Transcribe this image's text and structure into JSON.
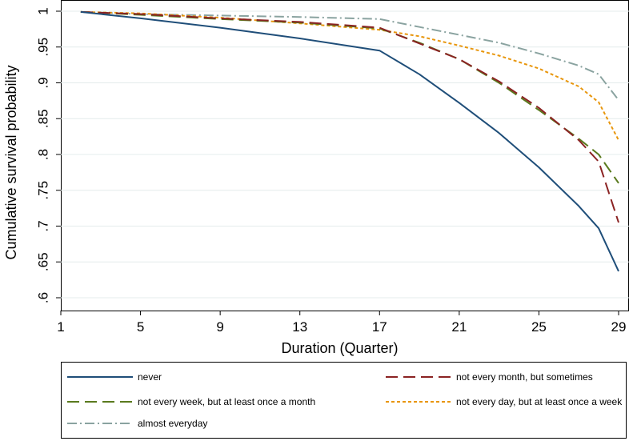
{
  "chart_data": {
    "type": "line",
    "title": "",
    "xlabel": "Duration (Quarter)",
    "ylabel": "Cumulative survival probability",
    "xlim": [
      1,
      29
    ],
    "ylim": [
      0.6,
      1
    ],
    "x_ticks": [
      1,
      5,
      9,
      13,
      17,
      21,
      25,
      29
    ],
    "y_ticks": [
      0.6,
      0.65,
      0.7,
      0.75,
      0.8,
      0.85,
      0.9,
      0.95,
      1
    ],
    "y_tick_labels": [
      ".6",
      ".65",
      ".7",
      ".75",
      ".8",
      ".85",
      ".9",
      ".95",
      "1"
    ],
    "grid": "horizontal",
    "legend_position": "bottom",
    "series": [
      {
        "name": "never",
        "color": "#1f4e79",
        "dash": "solid",
        "x": [
          2,
          5,
          9,
          13,
          17,
          19,
          21,
          23,
          25,
          27,
          28,
          29
        ],
        "y": [
          0.999,
          0.99,
          0.977,
          0.962,
          0.945,
          0.912,
          0.872,
          0.83,
          0.782,
          0.728,
          0.697,
          0.637
        ]
      },
      {
        "name": "not every month, but sometimes",
        "color": "#8b2323",
        "dash": "long-dash",
        "x": [
          2,
          5,
          9,
          13,
          17,
          19,
          21,
          23,
          25,
          27,
          28,
          29
        ],
        "y": [
          0.999,
          0.996,
          0.99,
          0.985,
          0.977,
          0.955,
          0.933,
          0.902,
          0.865,
          0.82,
          0.79,
          0.705
        ]
      },
      {
        "name": "not every week, but at least once a month",
        "color": "#5a7a1e",
        "dash": "long-dash",
        "x": [
          2,
          5,
          9,
          13,
          17,
          19,
          21,
          23,
          25,
          27,
          28,
          29
        ],
        "y": [
          0.999,
          0.995,
          0.989,
          0.984,
          0.976,
          0.956,
          0.933,
          0.9,
          0.862,
          0.822,
          0.8,
          0.76
        ]
      },
      {
        "name": "not every day, but at least once a week",
        "color": "#e8960c",
        "dash": "short-dash",
        "x": [
          2,
          5,
          9,
          13,
          17,
          19,
          21,
          23,
          25,
          27,
          28,
          29
        ],
        "y": [
          0.999,
          0.997,
          0.991,
          0.983,
          0.974,
          0.965,
          0.952,
          0.938,
          0.92,
          0.895,
          0.873,
          0.82
        ]
      },
      {
        "name": "almost everyday",
        "color": "#8aa3a0",
        "dash": "dash-dot",
        "x": [
          2,
          5,
          9,
          13,
          17,
          19,
          21,
          23,
          25,
          27,
          28,
          29
        ],
        "y": [
          0.999,
          0.996,
          0.994,
          0.992,
          0.989,
          0.978,
          0.967,
          0.956,
          0.941,
          0.924,
          0.912,
          0.876
        ]
      }
    ]
  }
}
